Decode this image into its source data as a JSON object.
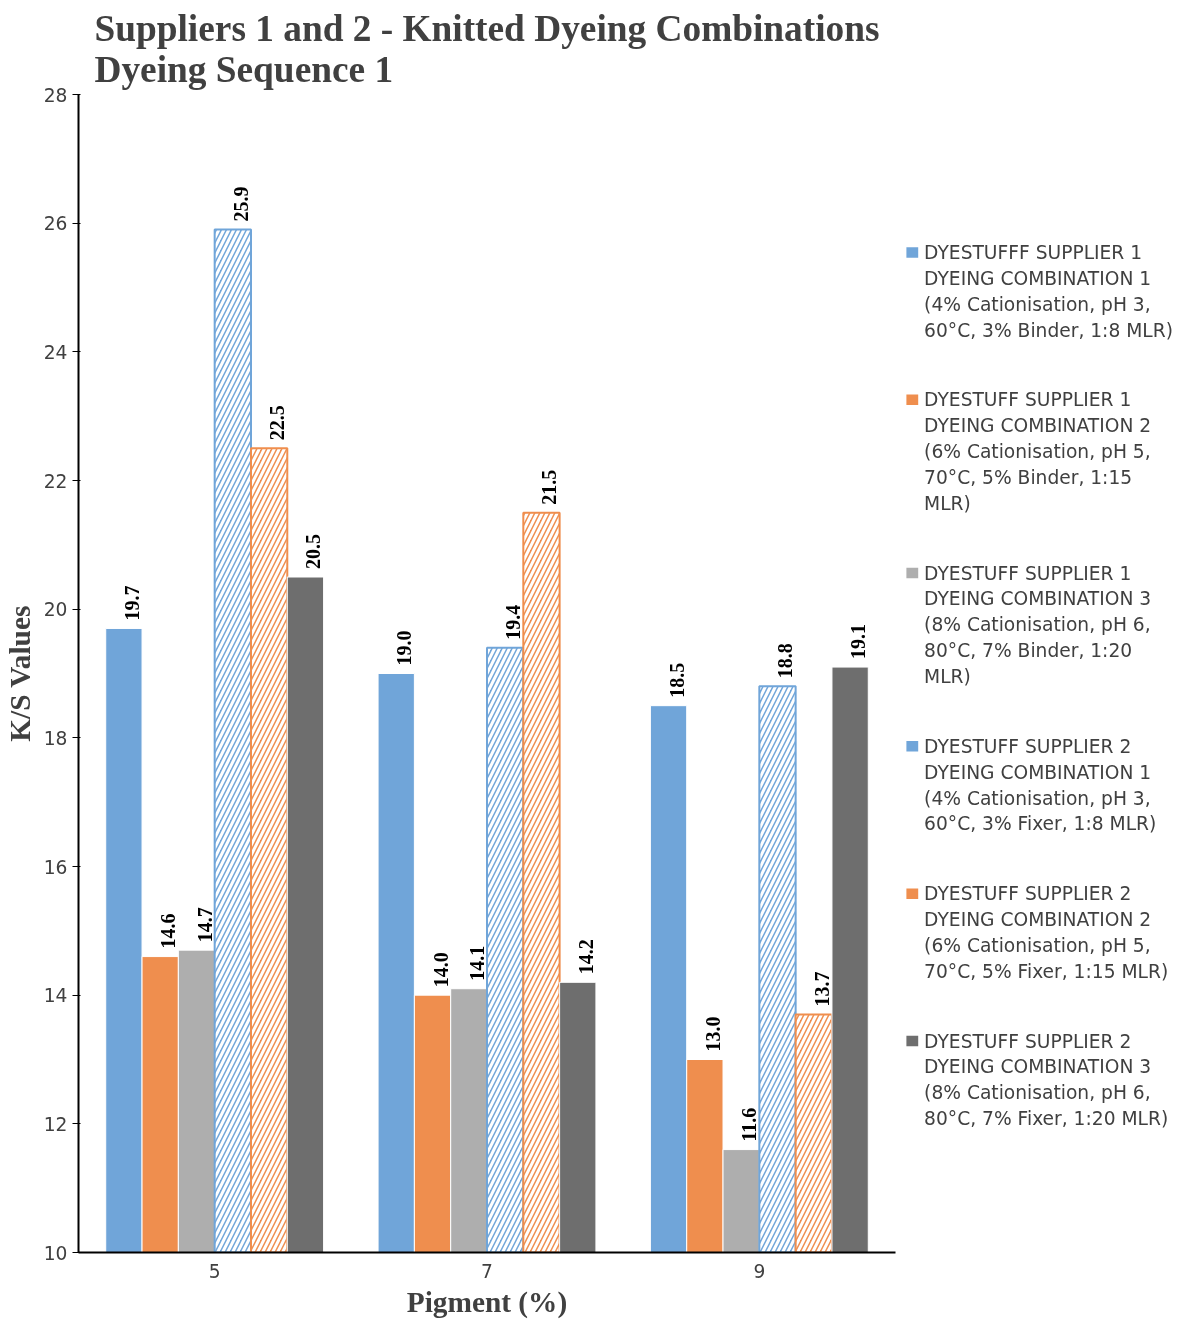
{
  "chart_data": {
    "type": "bar",
    "title": "Suppliers 1 and 2 - Knitted Dyeing Combinations\nDyeing Sequence 1",
    "xlabel": "Pigment (%)",
    "ylabel": "K/S Values",
    "categories": [
      "5",
      "7",
      "9"
    ],
    "series": [
      {
        "name": "DYESTUFFF SUPPLIER 1 DYEING COMBINATION 1 (4% Cationisation, pH 3, 60°C, 3% Binder, 1:8 MLR)",
        "color": "#70a5d9",
        "values": [
          19.7,
          19.0,
          18.5
        ]
      },
      {
        "name": "DYESTUFF SUPPLIER 1 DYEING COMBINATION 2 (6% Cationisation, pH 5, 70°C, 5% Binder, 1:15 MLR)",
        "color": "#ef8e4e",
        "values": [
          14.6,
          14.0,
          13.0
        ]
      },
      {
        "name": "DYESTUFF SUPPLIER 1 DYEING COMBINATION 3 (8% Cationisation, pH 6, 80°C, 7% Binder, 1:20 MLR)",
        "color": "#aeaeae",
        "values": [
          14.7,
          14.1,
          11.6
        ]
      },
      {
        "name": "DYESTUFF SUPPLIER 2 DYEING COMBINATION 1 (4% Cationisation, pH 3, 60°C, 3% Fixer, 1:8 MLR)",
        "color": "#70a5d9",
        "values": [
          25.9,
          19.4,
          18.8
        ]
      },
      {
        "name": "DYESTUFF SUPPLIER 2 DYEING COMBINATION 2 (6% Cationisation, pH 5, 70°C, 5% Fixer, 1:15 MLR)",
        "color": "#ef8e4e",
        "values": [
          22.5,
          21.5,
          13.7
        ]
      },
      {
        "name": "DYESTUFF SUPPLIER 2 DYEING COMBINATION 3 (8% Cationisation, pH 6, 80°C, 7% Fixer, 1:20 MLR)",
        "color": "#6e6e6e",
        "values": [
          20.5,
          14.2,
          19.1
        ]
      }
    ],
    "ylim": [
      10,
      28
    ],
    "yticks": [
      10,
      12,
      14,
      16,
      18,
      20,
      22,
      24,
      26,
      28
    ],
    "value_labels": [
      [
        "19.7",
        "19.0",
        "18.5"
      ],
      [
        "14.6",
        "14.0",
        "13.0"
      ],
      [
        "14.7",
        "14.1",
        "11.6"
      ],
      [
        "25.9",
        "19.4",
        "18.8"
      ],
      [
        "22.5",
        "21.5",
        "13.7"
      ],
      [
        "20.5",
        "14.2",
        "19.1"
      ]
    ],
    "legend": "right",
    "grid": false
  }
}
